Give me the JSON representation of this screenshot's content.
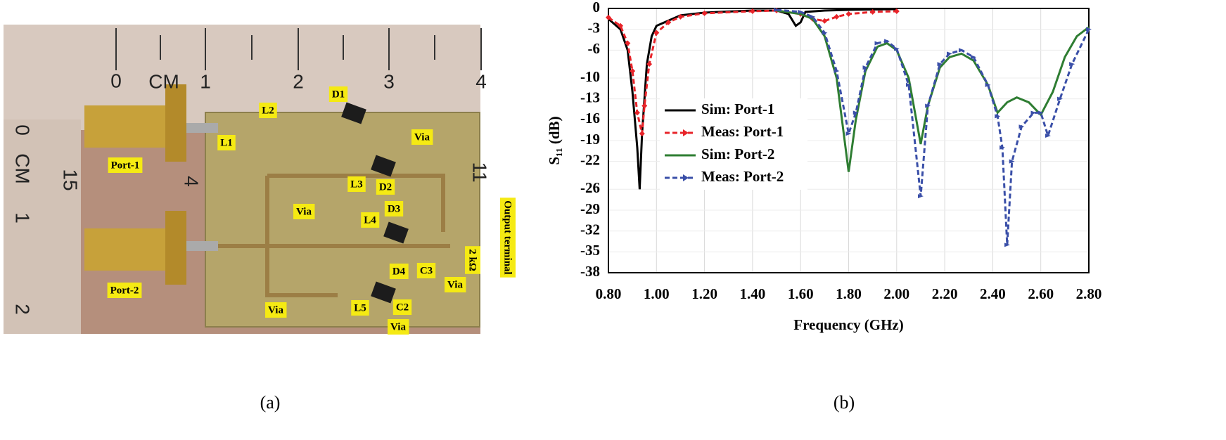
{
  "figure": {
    "captions": [
      "(a)",
      "(b)"
    ]
  },
  "photo": {
    "ruler_labels": [
      "0",
      "CM",
      "1",
      "2",
      "3",
      "4",
      "0",
      "CM",
      "1",
      "2",
      "15",
      "4",
      "11"
    ],
    "component_labels": [
      "Port-1",
      "Port-2",
      "L1",
      "L2",
      "D1",
      "Via",
      "L3",
      "D2",
      "Via",
      "D3",
      "L4",
      "2 kΩ",
      "Output terminal",
      "D4",
      "C3",
      "Via",
      "Via",
      "L5",
      "C2",
      "Via"
    ]
  },
  "chart_data": {
    "type": "line",
    "xlabel": "Frequency (GHz)",
    "ylabel": "S₁₁ (dB)",
    "xlim": [
      0.8,
      2.8
    ],
    "xticks": [
      {
        "value": 0.8,
        "label": "0.80"
      },
      {
        "value": 1.0,
        "label": "1.00"
      },
      {
        "value": 1.2,
        "label": "1.20"
      },
      {
        "value": 1.4,
        "label": "1.40"
      },
      {
        "value": 1.6,
        "label": "1.60"
      },
      {
        "value": 1.8,
        "label": "1.80"
      },
      {
        "value": 2.0,
        "label": "2.00"
      },
      {
        "value": 2.2,
        "label": "2.20"
      },
      {
        "value": 2.4,
        "label": "2.40"
      },
      {
        "value": 2.6,
        "label": "2.60"
      },
      {
        "value": 2.8,
        "label": "2.80"
      }
    ],
    "ylim": [
      -38,
      0
    ],
    "yticks": [
      0,
      -3,
      -6,
      -10,
      -13,
      -16,
      -19,
      -22,
      -26,
      -29,
      -32,
      -35,
      -38
    ],
    "grid": true,
    "series": [
      {
        "name": "Sim: Port-1",
        "color": "#000000",
        "style": "solid",
        "x": [
          0.8,
          0.85,
          0.88,
          0.9,
          0.92,
          0.93,
          0.94,
          0.96,
          0.98,
          1.0,
          1.1,
          1.2,
          1.4,
          1.5,
          1.55,
          1.58,
          1.6,
          1.62,
          1.7,
          1.8,
          2.0
        ],
        "values": [
          -1.5,
          -3,
          -6,
          -12,
          -20,
          -26,
          -18,
          -8,
          -4,
          -2.5,
          -1,
          -0.6,
          -0.3,
          -0.3,
          -0.8,
          -2.5,
          -2,
          -0.5,
          -0.3,
          -0.2,
          -0.1
        ]
      },
      {
        "name": "Meas: Port-1",
        "color": "#e8242a",
        "style": "dashed",
        "x": [
          0.8,
          0.85,
          0.88,
          0.9,
          0.92,
          0.94,
          0.95,
          0.97,
          1.0,
          1.05,
          1.1,
          1.2,
          1.4,
          1.5,
          1.6,
          1.65,
          1.7,
          1.75,
          1.8,
          1.9,
          2.0
        ],
        "values": [
          -1.3,
          -2.5,
          -5,
          -9,
          -15,
          -18,
          -14,
          -8,
          -3.5,
          -2,
          -1.2,
          -0.7,
          -0.4,
          -0.3,
          -0.8,
          -1.5,
          -1.8,
          -1.2,
          -0.8,
          -0.5,
          -0.4
        ]
      },
      {
        "name": "Sim: Port-2",
        "color": "#2e7d32",
        "style": "solid",
        "x": [
          1.5,
          1.6,
          1.65,
          1.7,
          1.75,
          1.8,
          1.83,
          1.87,
          1.92,
          1.96,
          2.0,
          2.05,
          2.1,
          2.13,
          2.18,
          2.22,
          2.27,
          2.32,
          2.38,
          2.42,
          2.46,
          2.5,
          2.55,
          2.6,
          2.65,
          2.7,
          2.75,
          2.8
        ],
        "values": [
          -0.3,
          -0.8,
          -1.5,
          -4,
          -10,
          -23.5,
          -16,
          -9,
          -5.5,
          -5,
          -6,
          -10,
          -19.5,
          -14,
          -8.5,
          -7,
          -6.5,
          -7.5,
          -11,
          -15,
          -13.5,
          -12.8,
          -13.5,
          -15.3,
          -12,
          -7,
          -4,
          -2.7
        ]
      },
      {
        "name": "Meas: Port-2",
        "color": "#3a4fa8",
        "style": "dashed",
        "x": [
          1.5,
          1.6,
          1.65,
          1.7,
          1.75,
          1.8,
          1.83,
          1.87,
          1.92,
          1.96,
          2.0,
          2.05,
          2.1,
          2.13,
          2.18,
          2.22,
          2.27,
          2.32,
          2.38,
          2.42,
          2.44,
          2.46,
          2.48,
          2.52,
          2.57,
          2.6,
          2.63,
          2.68,
          2.73,
          2.8
        ],
        "values": [
          -0.2,
          -0.5,
          -1.2,
          -3.5,
          -9,
          -18,
          -15,
          -8.5,
          -5,
          -4.7,
          -5.8,
          -11,
          -27,
          -14,
          -8,
          -6.5,
          -6,
          -7,
          -11,
          -15.5,
          -20,
          -34,
          -22,
          -17,
          -15,
          -15,
          -18.3,
          -13,
          -8,
          -3
        ]
      }
    ]
  }
}
